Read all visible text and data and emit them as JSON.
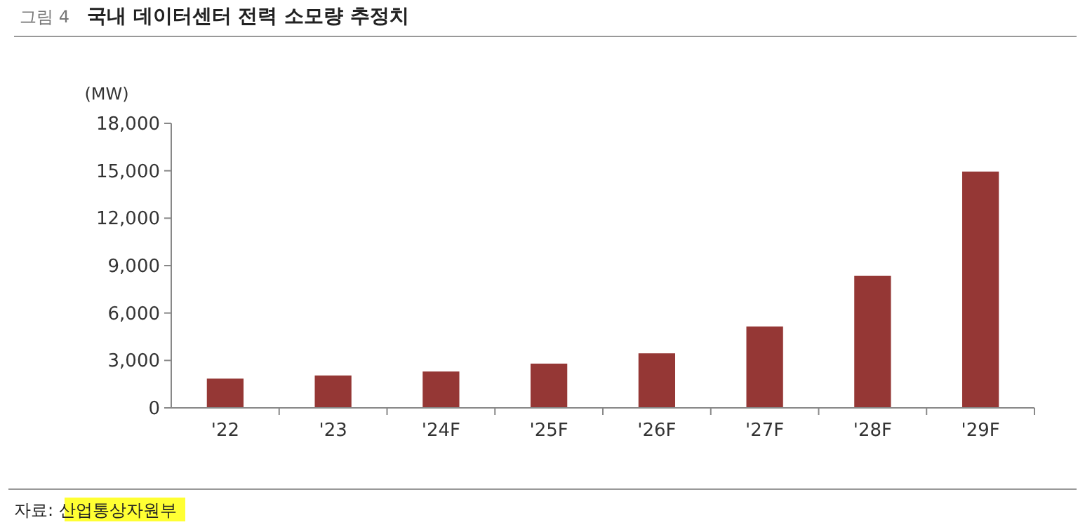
{
  "chart_data": {
    "type": "bar",
    "title": "국내 데이터센터 전력 소모량 추정치",
    "ylabel": "(MW)",
    "categories": [
      "'22",
      "'23",
      "'24F",
      "'25F",
      "'26F",
      "'27F",
      "'28F",
      "'29F"
    ],
    "values": [
      1850,
      2050,
      2300,
      2800,
      3450,
      5150,
      8350,
      14950
    ],
    "color": "#953735",
    "ylim": [
      0,
      18000
    ],
    "yticks": [
      {
        "value": 0,
        "label": "0"
      },
      {
        "value": 3000,
        "label": "3,000"
      },
      {
        "value": 6000,
        "label": "6,000"
      },
      {
        "value": 9000,
        "label": "9,000"
      },
      {
        "value": 12000,
        "label": "12,000"
      },
      {
        "value": 15000,
        "label": "15,000"
      },
      {
        "value": 18000,
        "label": "18,000"
      }
    ],
    "grid": false,
    "annotations": [
      "그림 4",
      "자료: 산업통상자원부"
    ]
  }
}
